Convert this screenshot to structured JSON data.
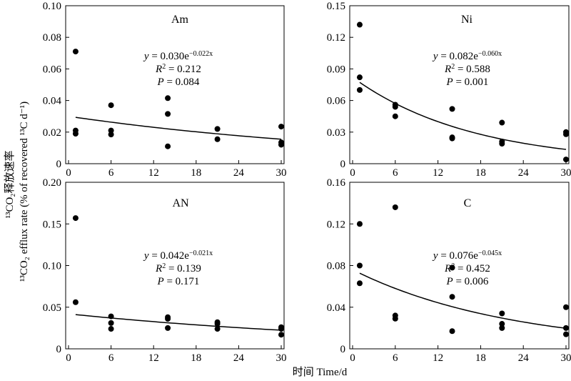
{
  "figure": {
    "xlabel": "时间 Time/d",
    "ylabel_cn": "¹³CO₂释放速率",
    "ylabel_en": "¹³CO₂ efflux rate (% of recovered ¹³C d⁻¹)"
  },
  "chart_data": [
    {
      "type": "scatter",
      "panel_label": "Am",
      "x": [
        1,
        1,
        1,
        6,
        6,
        6,
        14,
        14,
        14,
        21,
        21,
        30,
        30,
        30
      ],
      "y": [
        0.071,
        0.021,
        0.019,
        0.037,
        0.021,
        0.0185,
        0.0415,
        0.0315,
        0.011,
        0.022,
        0.0155,
        0.0235,
        0.0135,
        0.012
      ],
      "xticks": [
        "0",
        "6",
        "12",
        "18",
        "24",
        "30"
      ],
      "yticks": [
        "0",
        "0.02",
        "0.04",
        "0.06",
        "0.08",
        "0.10"
      ],
      "xlim": [
        0,
        30
      ],
      "ylim": [
        0,
        0.1
      ],
      "fit": {
        "a": 0.03,
        "b": -0.022
      },
      "equation": {
        "y": "y",
        "eq": " = 0.030e",
        "exp": "−0.022x",
        "r2_pre": "R",
        "r2_sup": "2",
        "r2_val": " = 0.212",
        "p_pre": "P",
        "p_val": " = 0.084"
      }
    },
    {
      "type": "scatter",
      "panel_label": "Ni",
      "x": [
        1,
        1,
        1,
        6,
        6,
        6,
        14,
        14,
        14,
        21,
        21,
        21,
        30,
        30,
        30
      ],
      "y": [
        0.132,
        0.082,
        0.07,
        0.056,
        0.054,
        0.045,
        0.052,
        0.025,
        0.024,
        0.039,
        0.021,
        0.019,
        0.03,
        0.028,
        0.004
      ],
      "xticks": [
        "0",
        "6",
        "12",
        "18",
        "24",
        "30"
      ],
      "yticks": [
        "0",
        "0.03",
        "0.06",
        "0.09",
        "0.12",
        "0.15"
      ],
      "xlim": [
        0,
        30
      ],
      "ylim": [
        0,
        0.15
      ],
      "fit": {
        "a": 0.082,
        "b": -0.06
      },
      "equation": {
        "y": "y",
        "eq": " = 0.082e",
        "exp": "−0.060x",
        "r2_pre": "R",
        "r2_sup": "2",
        "r2_val": " = 0.588",
        "p_pre": "P",
        "p_val": " = 0.001"
      }
    },
    {
      "type": "scatter",
      "panel_label": "AN",
      "x": [
        1,
        1,
        6,
        6,
        6,
        14,
        14,
        14,
        21,
        21,
        21,
        30,
        30,
        30
      ],
      "y": [
        0.157,
        0.056,
        0.039,
        0.031,
        0.024,
        0.038,
        0.036,
        0.025,
        0.032,
        0.03,
        0.024,
        0.026,
        0.024,
        0.017
      ],
      "xticks": [
        "0",
        "6",
        "12",
        "18",
        "24",
        "30"
      ],
      "yticks": [
        "0",
        "0.05",
        "0.10",
        "0.15",
        "0.20"
      ],
      "xlim": [
        0,
        30
      ],
      "ylim": [
        0,
        0.2
      ],
      "fit": {
        "a": 0.042,
        "b": -0.021
      },
      "equation": {
        "y": "y",
        "eq": " = 0.042e",
        "exp": "−0.021x",
        "r2_pre": "R",
        "r2_sup": "2",
        "r2_val": " = 0.139",
        "p_pre": "P",
        "p_val": " = 0.171"
      }
    },
    {
      "type": "scatter",
      "panel_label": "C",
      "x": [
        1,
        1,
        1,
        6,
        6,
        6,
        14,
        14,
        14,
        21,
        21,
        21,
        30,
        30,
        30
      ],
      "y": [
        0.12,
        0.08,
        0.063,
        0.136,
        0.032,
        0.029,
        0.078,
        0.05,
        0.017,
        0.034,
        0.024,
        0.02,
        0.04,
        0.02,
        0.014
      ],
      "xticks": [
        "0",
        "6",
        "12",
        "18",
        "24",
        "30"
      ],
      "yticks": [
        "0",
        "0.04",
        "0.08",
        "0.12",
        "0.16"
      ],
      "xlim": [
        0,
        30
      ],
      "ylim": [
        0,
        0.16
      ],
      "fit": {
        "a": 0.076,
        "b": -0.045
      },
      "equation": {
        "y": "y",
        "eq": " = 0.076e",
        "exp": "−0.045x",
        "r2_pre": "R",
        "r2_sup": "2",
        "r2_val": " = 0.452",
        "p_pre": "P",
        "p_val": " = 0.006"
      }
    }
  ]
}
